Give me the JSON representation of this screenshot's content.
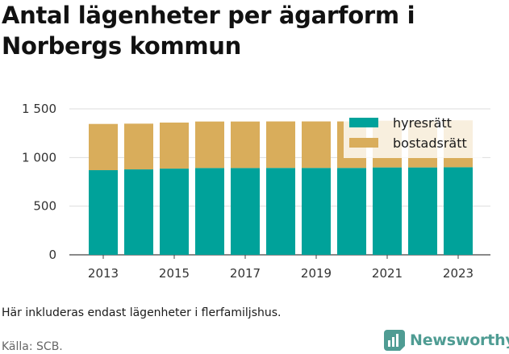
{
  "title": "Antal lägenheter per ägarform i Norbergs kommun",
  "note": "Här inkluderas endast lägenheter i flerfamiljshus.",
  "source": "Källa: SCB.",
  "brand": {
    "name": "Newsworthy",
    "color": "#4f9c93"
  },
  "colors": {
    "hyresratt": "#00a29a",
    "bostadsratt": "#d9ad5b",
    "grid": "#dddddd"
  },
  "chart_data": {
    "type": "bar",
    "stacked": true,
    "categories": [
      "2013",
      "2014",
      "2015",
      "2016",
      "2017",
      "2018",
      "2019",
      "2020",
      "2021",
      "2022",
      "2023"
    ],
    "xticks": [
      "2013",
      "2015",
      "2017",
      "2019",
      "2021",
      "2023"
    ],
    "series": [
      {
        "name": "hyresrätt",
        "values": [
          870,
          878,
          886,
          892,
          892,
          893,
          893,
          893,
          898,
          898,
          900
        ]
      },
      {
        "name": "bostadsrätt",
        "values": [
          475,
          470,
          473,
          478,
          478,
          478,
          478,
          478,
          480,
          480,
          482
        ]
      }
    ],
    "yticks": [
      {
        "value": 0,
        "label": "0"
      },
      {
        "value": 500,
        "label": "500"
      },
      {
        "value": 1000,
        "label": "1 000"
      },
      {
        "value": 1500,
        "label": "1 500"
      }
    ],
    "ylim": [
      0,
      1500
    ],
    "grid": true,
    "legend": "top-right"
  }
}
